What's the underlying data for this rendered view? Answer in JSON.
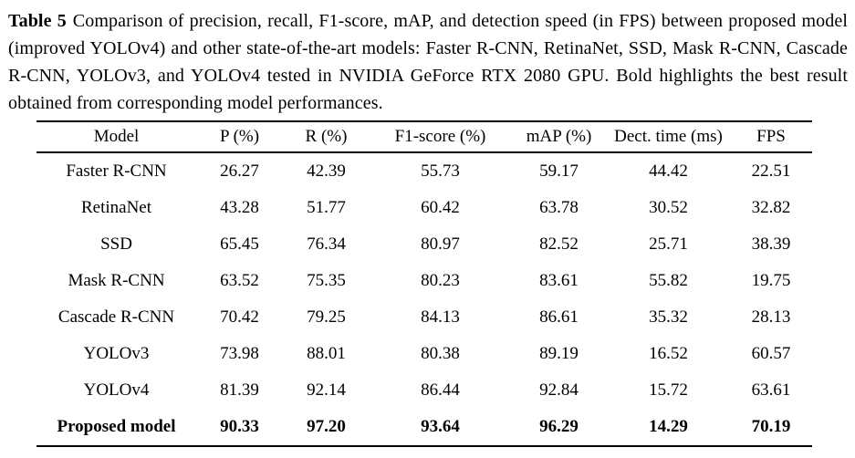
{
  "caption": {
    "label": "Table 5",
    "text": "Comparison of precision, recall, F1-score, mAP, and detection speed (in FPS) between proposed model (improved YOLOv4) and other state-of-the-art models: Faster R-CNN, RetinaNet, SSD, Mask R-CNN, Cascade R-CNN, YOLOv3, and YOLOv4 tested in NVIDIA GeForce RTX 2080 GPU. Bold highlights the best result obtained from corresponding model performances."
  },
  "table": {
    "columns": [
      "Model",
      "P (%)",
      "R (%)",
      "F1-score (%)",
      "mAP (%)",
      "Dect. time (ms)",
      "FPS"
    ],
    "rows": [
      {
        "model": "Faster R-CNN",
        "values": [
          "26.27",
          "42.39",
          "55.73",
          "59.17",
          "44.42",
          "22.51"
        ],
        "bold": false
      },
      {
        "model": "RetinaNet",
        "values": [
          "43.28",
          "51.77",
          "60.42",
          "63.78",
          "30.52",
          "32.82"
        ],
        "bold": false
      },
      {
        "model": "SSD",
        "values": [
          "65.45",
          "76.34",
          "80.97",
          "82.52",
          "25.71",
          "38.39"
        ],
        "bold": false
      },
      {
        "model": "Mask R-CNN",
        "values": [
          "63.52",
          "75.35",
          "80.23",
          "83.61",
          "55.82",
          "19.75"
        ],
        "bold": false
      },
      {
        "model": "Cascade R-CNN",
        "values": [
          "70.42",
          "79.25",
          "84.13",
          "86.61",
          "35.32",
          "28.13"
        ],
        "bold": false
      },
      {
        "model": "YOLOv3",
        "values": [
          "73.98",
          "88.01",
          "80.38",
          "89.19",
          "16.52",
          "60.57"
        ],
        "bold": false
      },
      {
        "model": "YOLOv4",
        "values": [
          "81.39",
          "92.14",
          "86.44",
          "92.84",
          "15.72",
          "63.61"
        ],
        "bold": false
      },
      {
        "model": "Proposed model",
        "values": [
          "90.33",
          "97.20",
          "93.64",
          "96.29",
          "14.29",
          "70.19"
        ],
        "bold": true
      }
    ]
  },
  "chart_data": {
    "type": "table",
    "title": "Table 5",
    "categories": [
      "Faster R-CNN",
      "RetinaNet",
      "SSD",
      "Mask R-CNN",
      "Cascade R-CNN",
      "YOLOv3",
      "YOLOv4",
      "Proposed model"
    ],
    "series": [
      {
        "name": "P (%)",
        "values": [
          26.27,
          43.28,
          65.45,
          63.52,
          70.42,
          73.98,
          81.39,
          90.33
        ]
      },
      {
        "name": "R (%)",
        "values": [
          42.39,
          51.77,
          76.34,
          75.35,
          79.25,
          88.01,
          92.14,
          97.2
        ]
      },
      {
        "name": "F1-score (%)",
        "values": [
          55.73,
          60.42,
          80.97,
          80.23,
          84.13,
          80.38,
          86.44,
          93.64
        ]
      },
      {
        "name": "mAP (%)",
        "values": [
          59.17,
          63.78,
          82.52,
          83.61,
          86.61,
          89.19,
          92.84,
          96.29
        ]
      },
      {
        "name": "Dect. time (ms)",
        "values": [
          44.42,
          30.52,
          25.71,
          55.82,
          35.32,
          16.52,
          15.72,
          14.29
        ]
      },
      {
        "name": "FPS",
        "values": [
          22.51,
          32.82,
          38.39,
          19.75,
          28.13,
          60.57,
          63.61,
          70.19
        ]
      }
    ]
  },
  "colors": {
    "text": "#000000",
    "background": "#ffffff",
    "rule": "#000000"
  }
}
